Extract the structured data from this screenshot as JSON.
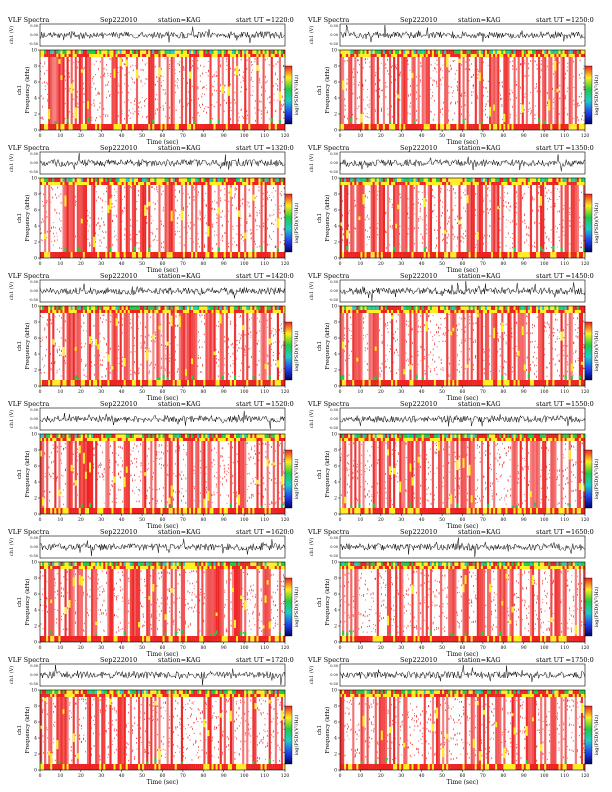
{
  "figure": {
    "header_labels": {
      "title": "VLF Spectra",
      "date": "Sep222010",
      "station": "station=KAG",
      "start": "start"
    },
    "waveform_ylabel": "ch1 (V)",
    "waveform_ticks": [
      "0.50",
      "0.00",
      "-0.50"
    ],
    "spectrogram_ylabel": "Frequency (kHz)",
    "spectrogram_side_label": "ch1",
    "frequency_ticks": [
      "0",
      "2",
      "4",
      "6",
      "8",
      "10"
    ],
    "time_ticks": [
      "0",
      "10",
      "20",
      "30",
      "40",
      "50",
      "60",
      "70",
      "80",
      "90",
      "100",
      "110",
      "120"
    ],
    "xlabel": "Time (sec)",
    "colorbar_label": "log(PSD)(V²/Hz)",
    "colorbar_ticks": [
      "-7",
      "-6",
      "-5",
      "-4",
      "-3",
      "-2"
    ],
    "colors": {
      "red": "#ee2222",
      "yellow": "#ffee22",
      "green": "#22cc44",
      "cyan": "#22cccc",
      "blue": "#2244ee",
      "navy": "#000066",
      "white": "#ffffff"
    }
  },
  "chart_data": [
    {
      "type": "heatmap",
      "title": "VLF Spectra",
      "date": "Sep222010",
      "station": "station=KAG",
      "start_ut": "UT =1220:0",
      "xlabel": "Time (sec)",
      "ylabel": "Frequency (kHz)",
      "xlim": [
        0,
        120
      ],
      "ylim": [
        0,
        10
      ],
      "colorbar_range": [
        -7,
        -2
      ]
    },
    {
      "type": "heatmap",
      "title": "VLF Spectra",
      "date": "Sep222010",
      "station": "station=KAG",
      "start_ut": "UT =1250:0",
      "xlabel": "Time (sec)",
      "ylabel": "Frequency (kHz)",
      "xlim": [
        0,
        120
      ],
      "ylim": [
        0,
        10
      ],
      "colorbar_range": [
        -7,
        -2
      ]
    },
    {
      "type": "heatmap",
      "title": "VLF Spectra",
      "date": "Sep222010",
      "station": "station=KAG",
      "start_ut": "UT =1320:0",
      "xlabel": "Time (sec)",
      "ylabel": "Frequency (kHz)",
      "xlim": [
        0,
        120
      ],
      "ylim": [
        0,
        10
      ],
      "colorbar_range": [
        -7,
        -2
      ]
    },
    {
      "type": "heatmap",
      "title": "VLF Spectra",
      "date": "Sep222010",
      "station": "station=KAG",
      "start_ut": "UT =1350:0",
      "xlabel": "Time (sec)",
      "ylabel": "Frequency (kHz)",
      "xlim": [
        0,
        120
      ],
      "ylim": [
        0,
        10
      ],
      "colorbar_range": [
        -7,
        -2
      ]
    },
    {
      "type": "heatmap",
      "title": "VLF Spectra",
      "date": "Sep222010",
      "station": "station=KAG",
      "start_ut": "UT =1420:0",
      "xlabel": "Time (sec)",
      "ylabel": "Frequency (kHz)",
      "xlim": [
        0,
        120
      ],
      "ylim": [
        0,
        10
      ],
      "colorbar_range": [
        -7,
        -2
      ]
    },
    {
      "type": "heatmap",
      "title": "VLF Spectra",
      "date": "Sep222010",
      "station": "station=KAG",
      "start_ut": "UT =1450:0",
      "xlabel": "Time (sec)",
      "ylabel": "Frequency (kHz)",
      "xlim": [
        0,
        120
      ],
      "ylim": [
        0,
        10
      ],
      "colorbar_range": [
        -7,
        -2
      ]
    },
    {
      "type": "heatmap",
      "title": "VLF Spectra",
      "date": "Sep222010",
      "station": "station=KAG",
      "start_ut": "UT =1520:0",
      "xlabel": "Time (sec)",
      "ylabel": "Frequency (kHz)",
      "xlim": [
        0,
        120
      ],
      "ylim": [
        0,
        10
      ],
      "colorbar_range": [
        -7,
        -2
      ]
    },
    {
      "type": "heatmap",
      "title": "VLF Spectra",
      "date": "Sep222010",
      "station": "station=KAG",
      "start_ut": "UT =1550:0",
      "xlabel": "Time (sec)",
      "ylabel": "Frequency (kHz)",
      "xlim": [
        0,
        120
      ],
      "ylim": [
        0,
        10
      ],
      "colorbar_range": [
        -7,
        -2
      ]
    },
    {
      "type": "heatmap",
      "title": "VLF Spectra",
      "date": "Sep222010",
      "station": "station=KAG",
      "start_ut": "UT =1620:0",
      "xlabel": "Time (sec)",
      "ylabel": "Frequency (kHz)",
      "xlim": [
        0,
        120
      ],
      "ylim": [
        0,
        10
      ],
      "colorbar_range": [
        -7,
        -2
      ]
    },
    {
      "type": "heatmap",
      "title": "VLF Spectra",
      "date": "Sep222010",
      "station": "station=KAG",
      "start_ut": "UT =1650:0",
      "xlabel": "Time (sec)",
      "ylabel": "Frequency (kHz)",
      "xlim": [
        0,
        120
      ],
      "ylim": [
        0,
        10
      ],
      "colorbar_range": [
        -7,
        -2
      ]
    },
    {
      "type": "heatmap",
      "title": "VLF Spectra",
      "date": "Sep222010",
      "station": "station=KAG",
      "start_ut": "UT =1720:0",
      "xlabel": "Time (sec)",
      "ylabel": "Frequency (kHz)",
      "xlim": [
        0,
        120
      ],
      "ylim": [
        0,
        10
      ],
      "colorbar_range": [
        -7,
        -2
      ]
    },
    {
      "type": "heatmap",
      "title": "VLF Spectra",
      "date": "Sep222010",
      "station": "station=KAG",
      "start_ut": "UT =1750:0",
      "xlabel": "Time (sec)",
      "ylabel": "Frequency (kHz)",
      "xlim": [
        0,
        120
      ],
      "ylim": [
        0,
        10
      ],
      "colorbar_range": [
        -7,
        -2
      ]
    }
  ]
}
